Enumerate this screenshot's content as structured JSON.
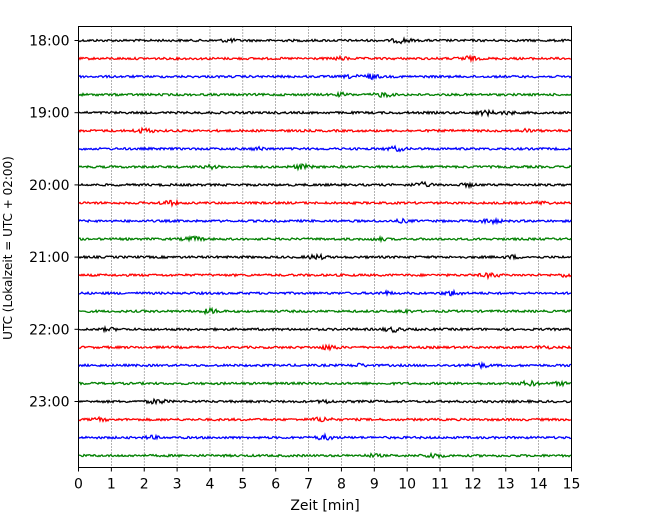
{
  "chart_data": {
    "type": "line",
    "title": "",
    "xlabel": "Zeit  [min]",
    "ylabel": "UTC (Lokalzeit = UTC + 02:00)",
    "xlim": [
      0,
      15
    ],
    "x_ticks": [
      0,
      1,
      2,
      3,
      4,
      5,
      6,
      7,
      8,
      9,
      10,
      11,
      12,
      13,
      14,
      15
    ],
    "x_tick_labels": [
      "0",
      "1",
      "2",
      "3",
      "4",
      "5",
      "6",
      "7",
      "8",
      "9",
      "10",
      "11",
      "12",
      "13",
      "14",
      "15"
    ],
    "y_tick_labels": [
      "18:00",
      "19:00",
      "20:00",
      "21:00",
      "22:00",
      "23:00"
    ],
    "grid": "vertical dotted",
    "trace_colors": [
      "#000000",
      "#ff0000",
      "#0000ff",
      "#008000"
    ],
    "traces_per_hour": 4,
    "trace_minutes": 15,
    "start_time": "18:00",
    "trace_count": 24
  }
}
